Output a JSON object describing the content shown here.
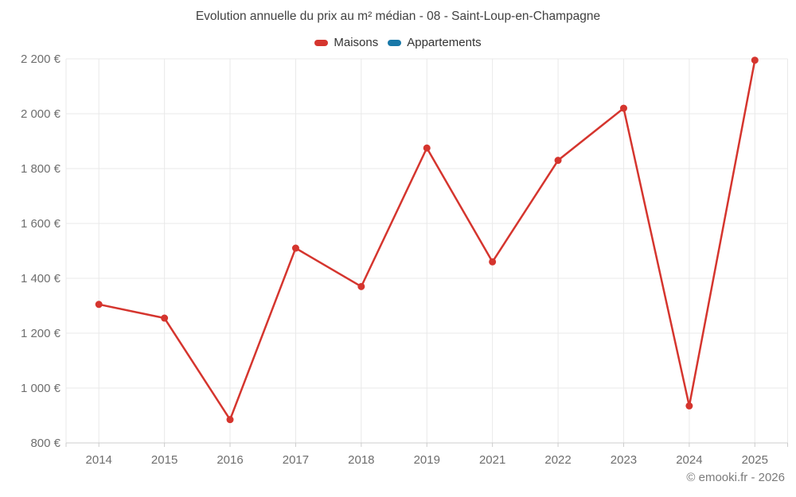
{
  "chart": {
    "title": "Evolution annuelle du prix au m² médian - 08 - Saint-Loup-en-Champagne",
    "footer": "© emooki.fr - 2026"
  },
  "chart_data": {
    "type": "line",
    "title": "Evolution annuelle du prix au m² médian - 08 - Saint-Loup-en-Champagne",
    "categories": [
      "2014",
      "2015",
      "2016",
      "2017",
      "2018",
      "2019",
      "2021",
      "2022",
      "2023",
      "2024",
      "2025"
    ],
    "series": [
      {
        "name": "Maisons",
        "color": "#d5352e",
        "values": [
          1305,
          1255,
          885,
          1510,
          1370,
          1875,
          1460,
          1830,
          2020,
          935,
          2195
        ]
      },
      {
        "name": "Appartements",
        "color": "#1878a8",
        "values": []
      }
    ],
    "xlabel": "",
    "ylabel": "",
    "ylim": [
      800,
      2200
    ],
    "yticks": [
      {
        "value": 800,
        "label": "800 €"
      },
      {
        "value": 1000,
        "label": "1 000 €"
      },
      {
        "value": 1200,
        "label": "1 200 €"
      },
      {
        "value": 1400,
        "label": "1 400 €"
      },
      {
        "value": 1600,
        "label": "1 600 €"
      },
      {
        "value": 1800,
        "label": "1 800 €"
      },
      {
        "value": 2000,
        "label": "2 000 €"
      },
      {
        "value": 2200,
        "label": "2 200 €"
      }
    ],
    "grid": true,
    "legend_position": "top",
    "note": "no data for 2020; Appartements series has no visible points"
  }
}
